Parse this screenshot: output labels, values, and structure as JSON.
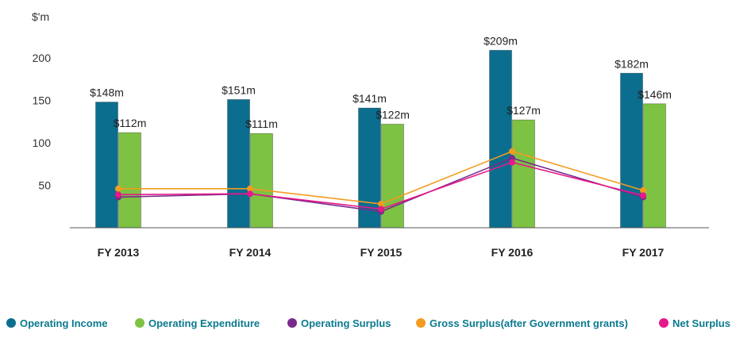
{
  "chart_data": {
    "type": "bar",
    "ylabel": "$'m",
    "ylim": [
      0,
      250
    ],
    "yticks": [
      50,
      100,
      150,
      200
    ],
    "grid": false,
    "legend_position": "bottom",
    "categories": [
      "FY 2013",
      "FY 2014",
      "FY 2015",
      "FY 2016",
      "FY 2017"
    ],
    "series": [
      {
        "name": "Operating Income",
        "kind": "bar",
        "color": "#0b6e8f",
        "values": [
          148,
          151,
          141,
          209,
          182
        ],
        "labels": [
          "$148m",
          "$151m",
          "$141m",
          "$209m",
          "$182m"
        ]
      },
      {
        "name": "Operating Expenditure",
        "kind": "bar",
        "color": "#7dc243",
        "values": [
          112,
          111,
          122,
          127,
          146
        ],
        "labels": [
          "$112m",
          "$111m",
          "$122m",
          "$127m",
          "$146m"
        ]
      },
      {
        "name": "Operating Surplus",
        "kind": "line",
        "color": "#7a2a8c",
        "values": [
          36,
          40,
          19,
          82,
          36
        ]
      },
      {
        "name": "Gross Surplus(after Government grants)",
        "kind": "line",
        "color": "#f29c1f",
        "values": [
          46,
          46,
          28,
          90,
          44
        ]
      },
      {
        "name": "Net Surplus",
        "kind": "line",
        "color": "#e6198a",
        "values": [
          39,
          40,
          22,
          77,
          38
        ]
      }
    ]
  }
}
